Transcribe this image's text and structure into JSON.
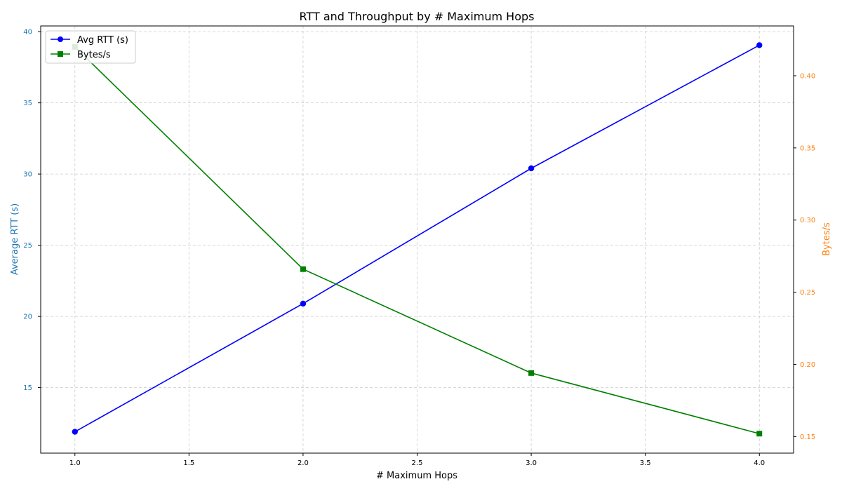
{
  "chart_data": {
    "type": "line",
    "title": "RTT and Throughput by # Maximum Hops",
    "xlabel": "# Maximum Hops",
    "ylabel_left": "Average RTT (s)",
    "ylabel_right": "Bytes/s",
    "x": [
      1.0,
      2.0,
      3.0,
      4.0
    ],
    "xlim": [
      0.85,
      4.15
    ],
    "x_ticks": [
      "1.0",
      "1.5",
      "2.0",
      "2.5",
      "3.0",
      "3.5",
      "4.0"
    ],
    "ylim_left": [
      10.4,
      40.4
    ],
    "ylim_right": [
      0.1385,
      0.4345
    ],
    "y_ticks_left": [
      "15",
      "20",
      "25",
      "30",
      "35",
      "40"
    ],
    "y_ticks_right": [
      "0.15",
      "0.20",
      "0.25",
      "0.30",
      "0.35",
      "0.40"
    ],
    "grid": true,
    "legend_position": "upper-left",
    "series": [
      {
        "name": "Avg RTT (s)",
        "axis": "left",
        "marker": "circle",
        "color": "#0000ff",
        "values": [
          11.9,
          20.9,
          30.4,
          39.05
        ]
      },
      {
        "name": "Bytes/s",
        "axis": "right",
        "marker": "square",
        "color": "#008000",
        "values": [
          0.42,
          0.266,
          0.194,
          0.152
        ]
      }
    ],
    "colors": {
      "left_axis": "#1f77b4",
      "right_axis": "#ff7f0e",
      "grid": "#cccccc"
    }
  }
}
